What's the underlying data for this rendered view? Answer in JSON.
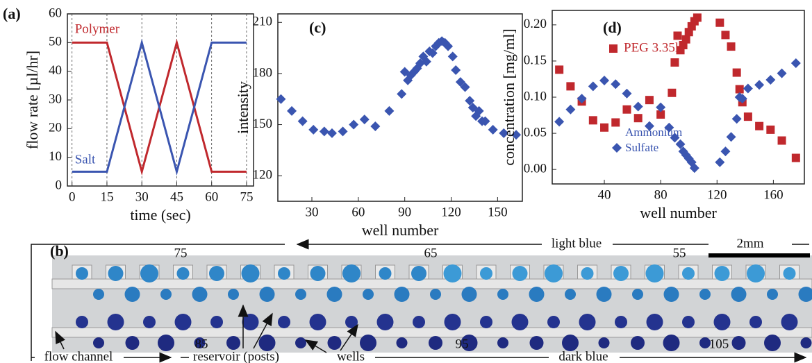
{
  "chart_data": [
    {
      "type": "line",
      "panel_label": "(a)",
      "xlabel": "time (sec)",
      "ylabel": "flow rate [µl/hr]",
      "x": [
        0,
        15,
        30,
        45,
        60,
        75
      ],
      "series": [
        {
          "name": "Polymer",
          "color": "#c0282d",
          "values": [
            50,
            50,
            5,
            50,
            5,
            5
          ]
        },
        {
          "name": "Salt",
          "color": "#3a55b0",
          "values": [
            5,
            5,
            50,
            5,
            50,
            50
          ]
        }
      ],
      "xlim": [
        -2,
        78
      ],
      "ylim": [
        0,
        60
      ],
      "xticks": [
        0,
        15,
        30,
        45,
        60,
        75
      ],
      "yticks": [
        0,
        10,
        20,
        30,
        40,
        50,
        60
      ],
      "grid": "x"
    },
    {
      "type": "scatter",
      "panel_label": "(c)",
      "xlabel": "well number",
      "ylabel": "intensity",
      "series": [
        {
          "color": "#3a55b0",
          "marker": "diamond",
          "x": [
            10,
            17,
            24,
            31,
            38,
            43,
            50,
            57,
            64,
            71,
            80,
            88,
            90,
            92,
            94,
            96,
            98,
            100,
            102,
            104,
            106,
            108,
            110,
            112,
            114,
            116,
            118,
            121,
            123,
            126,
            129,
            132,
            134,
            136,
            138,
            140,
            142,
            147,
            154,
            162
          ],
          "values": [
            165,
            158,
            152,
            147,
            146,
            145,
            146,
            150,
            153,
            149,
            158,
            168,
            181,
            176,
            179,
            181,
            183,
            186,
            190,
            187,
            193,
            192,
            196,
            198,
            199,
            198,
            196,
            190,
            182,
            175,
            172,
            164,
            160,
            155,
            158,
            152,
            152,
            147,
            145,
            144
          ]
        }
      ],
      "xlim": [
        8,
        166
      ],
      "ylim": [
        105,
        215
      ],
      "xticks": [
        30,
        60,
        90,
        120,
        150
      ],
      "yticks": [
        120,
        150,
        180,
        210
      ]
    },
    {
      "type": "scatter",
      "panel_label": "(d)",
      "xlabel": "well number",
      "ylabel": "concentration [mg/ml]",
      "series": [
        {
          "name": "PEG 3.35k",
          "color": "#c0282d",
          "marker": "square",
          "x": [
            8,
            16,
            24,
            32,
            40,
            48,
            56,
            64,
            72,
            80,
            88,
            90,
            92,
            94,
            96,
            98,
            100,
            102,
            104,
            106,
            122,
            126,
            130,
            134,
            136,
            138,
            142,
            150,
            158,
            166,
            176
          ],
          "values": [
            0.138,
            0.115,
            0.094,
            0.068,
            0.058,
            0.065,
            0.083,
            0.071,
            0.096,
            0.076,
            0.106,
            0.148,
            0.185,
            0.165,
            0.172,
            0.18,
            0.19,
            0.198,
            0.205,
            0.21,
            0.203,
            0.186,
            0.17,
            0.134,
            0.111,
            0.093,
            0.073,
            0.06,
            0.055,
            0.04,
            0.016
          ]
        },
        {
          "name": "Ammonium Sulfate",
          "color": "#3a55b0",
          "marker": "diamond",
          "x": [
            8,
            16,
            24,
            32,
            40,
            48,
            56,
            64,
            72,
            80,
            86,
            90,
            94,
            96,
            98,
            100,
            102,
            104,
            122,
            126,
            130,
            134,
            136,
            138,
            142,
            150,
            158,
            166,
            176
          ],
          "values": [
            0.066,
            0.083,
            0.098,
            0.115,
            0.123,
            0.118,
            0.105,
            0.087,
            0.06,
            0.086,
            0.058,
            0.044,
            0.035,
            0.025,
            0.02,
            0.015,
            0.01,
            0.002,
            0.01,
            0.025,
            0.045,
            0.07,
            0.1,
            0.098,
            0.112,
            0.117,
            0.124,
            0.133,
            0.147
          ]
        }
      ],
      "xlim": [
        3,
        182
      ],
      "ylim": [
        -0.02,
        0.22
      ],
      "xticks": [
        40,
        80,
        120,
        160
      ],
      "yticks": [
        {
          "value": 0,
          "label": "0.00"
        },
        {
          "value": 0.05,
          "label": "0.05"
        },
        {
          "value": 0.1,
          "label": "0.10"
        },
        {
          "value": 0.15,
          "label": "0.15"
        },
        {
          "value": 0.2,
          "label": "0.20"
        }
      ]
    }
  ],
  "photo": {
    "panel_label": "(b)",
    "top_arrow": "light blue",
    "scale_bar": "2mm",
    "top_numbers": [
      75,
      65,
      55
    ],
    "bottom_numbers": [
      85,
      95,
      105
    ],
    "bottom_arrow": "dark blue",
    "annotations": [
      "flow channel",
      "reservoir (posts)",
      "wells"
    ]
  }
}
